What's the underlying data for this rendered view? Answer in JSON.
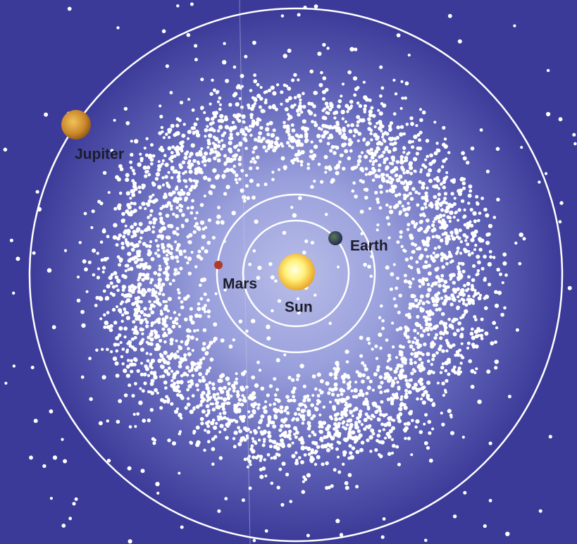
{
  "bodies": [
    {
      "label": "Jupiter"
    },
    {
      "label": "Mars"
    },
    {
      "label": "Earth"
    },
    {
      "label": "Sun"
    }
  ]
}
